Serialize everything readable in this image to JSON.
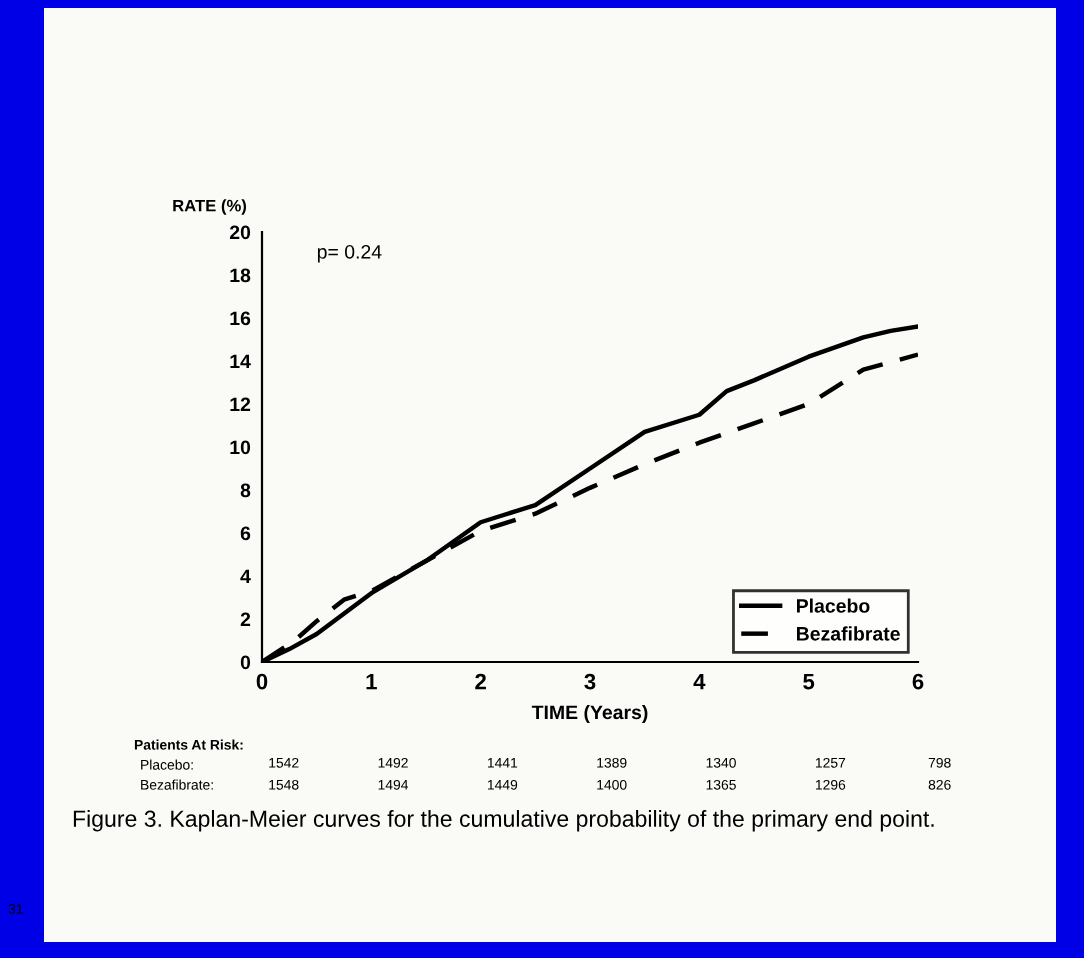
{
  "chart_data": {
    "type": "line",
    "xlabel": "TIME (Years)",
    "ylabel": "RATE (%)",
    "xlim": [
      0,
      6
    ],
    "ylim": [
      0,
      20
    ],
    "xticks": [
      0,
      1,
      2,
      3,
      4,
      5,
      6
    ],
    "yticks": [
      0,
      2,
      4,
      6,
      8,
      10,
      12,
      14,
      16,
      18,
      20
    ],
    "grid": false,
    "legend": "bottom right",
    "marker": "none",
    "series": [
      {
        "name": "Placebo",
        "color": "#000000",
        "line_style": "solid",
        "x": [
          0,
          0.25,
          0.5,
          1,
          1.5,
          2,
          2.5,
          3,
          3.5,
          4,
          4.25,
          4.5,
          5,
          5.5,
          5.75,
          6
        ],
        "values": [
          0,
          0.6,
          1.3,
          3.2,
          4.7,
          6.5,
          7.3,
          9.0,
          10.7,
          11.5,
          12.6,
          13.1,
          14.2,
          15.1,
          15.4,
          15.6
        ]
      },
      {
        "name": "Bezafibrate",
        "color": "#000000",
        "line_style": "dashed",
        "x": [
          0,
          0.3,
          0.5,
          0.75,
          1,
          1.5,
          2,
          2.5,
          3,
          3.5,
          4,
          4.5,
          5,
          5.25,
          5.5,
          6
        ],
        "values": [
          0,
          1.0,
          1.9,
          2.9,
          3.3,
          4.7,
          6.1,
          6.9,
          8.1,
          9.2,
          10.2,
          11.1,
          12.0,
          12.8,
          13.6,
          14.3
        ]
      }
    ],
    "annotations": [
      "p= 0.24",
      "Patients At Risk:",
      "Placebo:",
      "Bezafibrate:",
      "1542",
      "1492",
      "1441",
      "1389",
      "1340",
      "1257",
      "798",
      "1548",
      "1494",
      "1449",
      "1400",
      "1365",
      "1296",
      "826",
      "Figure 3. Kaplan-Meier curves for the cumulative probability of the primary end point.",
      "31"
    ]
  }
}
